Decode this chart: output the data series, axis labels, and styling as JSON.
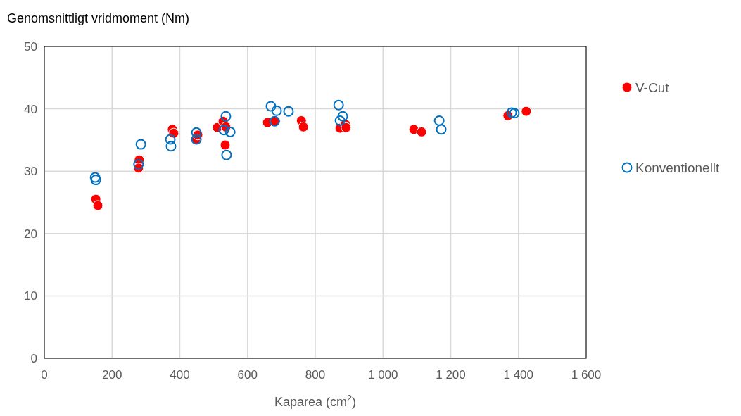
{
  "chart_data": {
    "type": "scatter",
    "ylabel": "Genomsnittligt vridmoment (Nm)",
    "xlabel": "Kaparea (cm$^{2}$)",
    "xlim": [
      0,
      1600
    ],
    "xticks": [
      0,
      200,
      400,
      600,
      800,
      {
        "value": 1000,
        "label": "1 000"
      },
      {
        "value": 1200,
        "label": "1 200"
      },
      {
        "value": 1400,
        "label": "1 400"
      },
      {
        "value": 1600,
        "label": "1 600"
      }
    ],
    "ylim": [
      0,
      50
    ],
    "yticks": [
      0,
      10,
      20,
      30,
      40,
      50
    ],
    "grid": true,
    "legend": "right",
    "series": [
      {
        "name": "V-Cut",
        "color": "#ff0000",
        "marker": "circle",
        "x": [
          152,
          158,
          280,
          278,
          378,
          382,
          447,
          453,
          511,
          528,
          536,
          534,
          659,
          682,
          759,
          765,
          873,
          889,
          891,
          1091,
          1114,
          1369,
          1423
        ],
        "values": [
          25.5,
          24.5,
          31.8,
          30.5,
          36.7,
          36.1,
          35.1,
          35.8,
          37.0,
          38.0,
          37.1,
          34.2,
          37.8,
          38.0,
          38.1,
          37.1,
          36.9,
          37.5,
          37.0,
          36.7,
          36.3,
          38.9,
          39.6
        ]
      },
      {
        "name": "Konventionellt",
        "color": "#0070c0",
        "marker": "open-circle",
        "x": [
          150,
          152,
          285,
          278,
          372,
          374,
          449,
          449,
          536,
          530,
          549,
          538,
          669,
          686,
          680,
          721,
          869,
          881,
          873,
          1166,
          1172,
          1380,
          1388
        ],
        "values": [
          29.0,
          28.6,
          34.3,
          31.1,
          35.1,
          34.0,
          36.2,
          35.1,
          38.8,
          36.6,
          36.3,
          32.6,
          40.4,
          39.7,
          38.0,
          39.6,
          40.6,
          38.8,
          38.1,
          38.1,
          36.7,
          39.4,
          39.3
        ]
      }
    ]
  }
}
